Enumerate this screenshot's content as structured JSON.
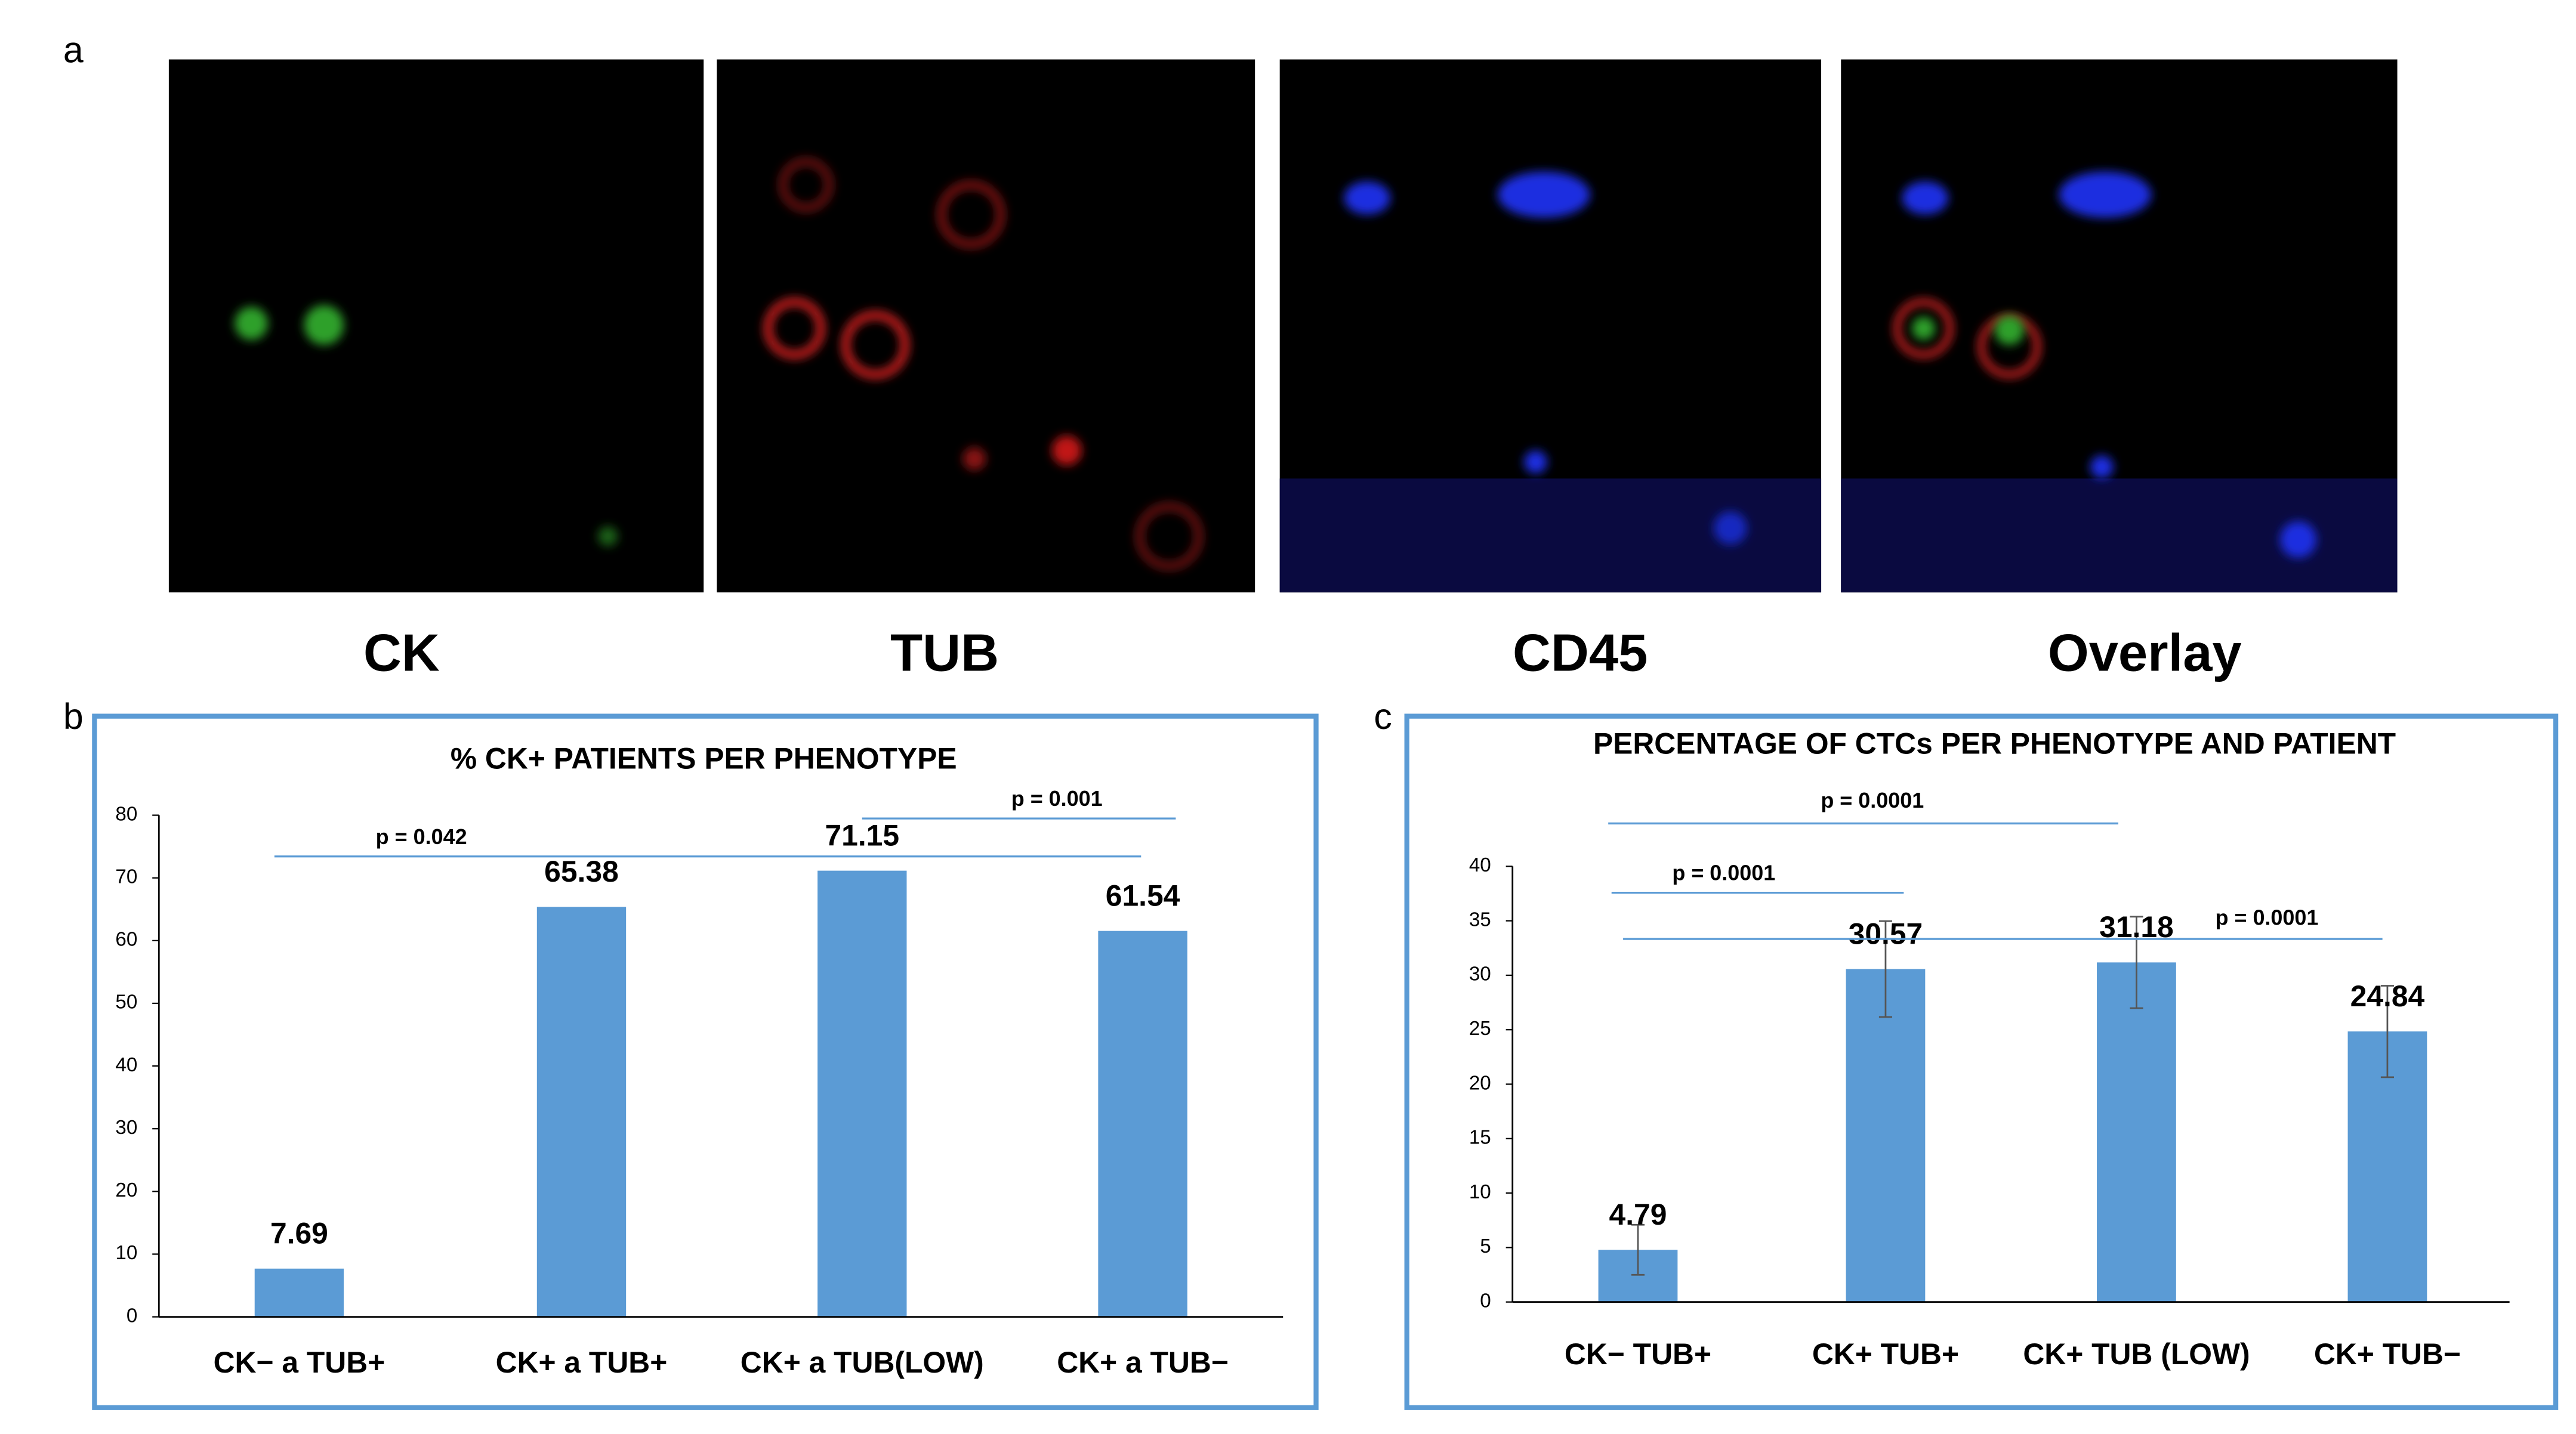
{
  "figure": {
    "panel_labels": [
      "a",
      "b",
      "c"
    ],
    "image_captions": [
      "CK",
      "TUB",
      "CD45",
      "Overlay"
    ]
  },
  "chart_data": [
    {
      "type": "bar",
      "title": "% CK+ PATIENTS PER PHENOTYPE",
      "categories": [
        "CK− a TUB+",
        "CK+ a TUB+",
        "CK+ a TUB(LOW)",
        "CK+ a TUB−"
      ],
      "values": [
        7.69,
        65.38,
        71.15,
        61.54
      ],
      "color": "#5b9bd5",
      "ylim": [
        0,
        80
      ],
      "yticks": [
        0,
        10,
        20,
        30,
        40,
        50,
        60,
        70,
        80
      ],
      "annotations": [
        "p = 0.042",
        "p = 0.001"
      ]
    },
    {
      "type": "bar",
      "title": "PERCENTAGE OF CTCs PER PHENOTYPE AND PATIENT",
      "categories": [
        "CK− TUB+",
        "CK+ TUB+",
        "CK+ TUB (LOW)",
        "CK+ TUB−"
      ],
      "values": [
        4.79,
        30.57,
        31.18,
        24.84
      ],
      "errors": [
        2.3,
        4.4,
        4.2,
        4.2
      ],
      "color": "#5b9bd5",
      "ylim": [
        0,
        40
      ],
      "yticks": [
        0,
        5,
        10,
        15,
        20,
        25,
        30,
        35,
        40
      ],
      "annotations": [
        "p = 0.0001",
        "p = 0.0001",
        "p = 0.0001"
      ]
    }
  ]
}
